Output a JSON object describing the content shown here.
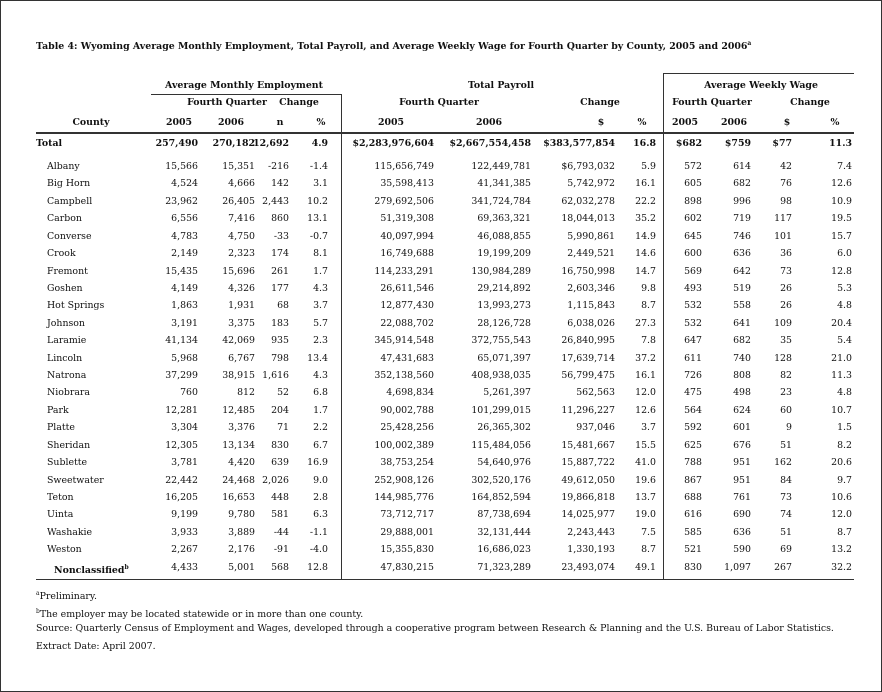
{
  "title": {
    "text": "Table 4:  Wyoming Average Monthly Employment, Total Payroll, and Average Weekly Wage for Fourth Quarter by County, 2005 and 2006",
    "note": "a"
  },
  "groups": [
    "Average Monthly Employment",
    "Total Payroll",
    "Average Weekly Wage"
  ],
  "subgroups": [
    "Fourth Quarter",
    "Change",
    "Fourth Quarter",
    "Change",
    "Fourth Quarter",
    "Change"
  ],
  "columns": [
    "County",
    "2005",
    "2006",
    "n",
    "%",
    "2005",
    "2006",
    "$",
    "%",
    "2005",
    "2006",
    "$",
    "%"
  ],
  "rows": [
    {
      "county": "Total",
      "values": [
        "257,490",
        "270,182",
        "12,692",
        "4.9",
        "$2,283,976,604",
        "$2,667,554,458",
        "$383,577,854",
        "16.8",
        "$682",
        "$759",
        "$77",
        "11.3"
      ]
    },
    {
      "county": "Albany",
      "values": [
        "15,566",
        "15,351",
        "-216",
        "-1.4",
        "115,656,749",
        "122,449,781",
        "$6,793,032",
        "5.9",
        "572",
        "614",
        "42",
        "7.4"
      ]
    },
    {
      "county": "Big Horn",
      "values": [
        "4,524",
        "4,666",
        "142",
        "3.1",
        "35,598,413",
        "41,341,385",
        "5,742,972",
        "16.1",
        "605",
        "682",
        "76",
        "12.6"
      ]
    },
    {
      "county": "Campbell",
      "values": [
        "23,962",
        "26,405",
        "2,443",
        "10.2",
        "279,692,506",
        "341,724,784",
        "62,032,278",
        "22.2",
        "898",
        "996",
        "98",
        "10.9"
      ]
    },
    {
      "county": "Carbon",
      "values": [
        "6,556",
        "7,416",
        "860",
        "13.1",
        "51,319,308",
        "69,363,321",
        "18,044,013",
        "35.2",
        "602",
        "719",
        "117",
        "19.5"
      ]
    },
    {
      "county": "Converse",
      "values": [
        "4,783",
        "4,750",
        "-33",
        "-0.7",
        "40,097,994",
        "46,088,855",
        "5,990,861",
        "14.9",
        "645",
        "746",
        "101",
        "15.7"
      ]
    },
    {
      "county": "Crook",
      "values": [
        "2,149",
        "2,323",
        "174",
        "8.1",
        "16,749,688",
        "19,199,209",
        "2,449,521",
        "14.6",
        "600",
        "636",
        "36",
        "6.0"
      ]
    },
    {
      "county": "Fremont",
      "values": [
        "15,435",
        "15,696",
        "261",
        "1.7",
        "114,233,291",
        "130,984,289",
        "16,750,998",
        "14.7",
        "569",
        "642",
        "73",
        "12.8"
      ]
    },
    {
      "county": "Goshen",
      "values": [
        "4,149",
        "4,326",
        "177",
        "4.3",
        "26,611,546",
        "29,214,892",
        "2,603,346",
        "9.8",
        "493",
        "519",
        "26",
        "5.3"
      ]
    },
    {
      "county": "Hot Springs",
      "values": [
        "1,863",
        "1,931",
        "68",
        "3.7",
        "12,877,430",
        "13,993,273",
        "1,115,843",
        "8.7",
        "532",
        "558",
        "26",
        "4.8"
      ]
    },
    {
      "county": "Johnson",
      "values": [
        "3,191",
        "3,375",
        "183",
        "5.7",
        "22,088,702",
        "28,126,728",
        "6,038,026",
        "27.3",
        "532",
        "641",
        "109",
        "20.4"
      ]
    },
    {
      "county": "Laramie",
      "values": [
        "41,134",
        "42,069",
        "935",
        "2.3",
        "345,914,548",
        "372,755,543",
        "26,840,995",
        "7.8",
        "647",
        "682",
        "35",
        "5.4"
      ]
    },
    {
      "county": "Lincoln",
      "values": [
        "5,968",
        "6,767",
        "798",
        "13.4",
        "47,431,683",
        "65,071,397",
        "17,639,714",
        "37.2",
        "611",
        "740",
        "128",
        "21.0"
      ]
    },
    {
      "county": "Natrona",
      "values": [
        "37,299",
        "38,915",
        "1,616",
        "4.3",
        "352,138,560",
        "408,938,035",
        "56,799,475",
        "16.1",
        "726",
        "808",
        "82",
        "11.3"
      ]
    },
    {
      "county": "Niobrara",
      "values": [
        "760",
        "812",
        "52",
        "6.8",
        "4,698,834",
        "5,261,397",
        "562,563",
        "12.0",
        "475",
        "498",
        "23",
        "4.8"
      ]
    },
    {
      "county": "Park",
      "values": [
        "12,281",
        "12,485",
        "204",
        "1.7",
        "90,002,788",
        "101,299,015",
        "11,296,227",
        "12.6",
        "564",
        "624",
        "60",
        "10.7"
      ]
    },
    {
      "county": "Platte",
      "values": [
        "3,304",
        "3,376",
        "71",
        "2.2",
        "25,428,256",
        "26,365,302",
        "937,046",
        "3.7",
        "592",
        "601",
        "9",
        "1.5"
      ]
    },
    {
      "county": "Sheridan",
      "values": [
        "12,305",
        "13,134",
        "830",
        "6.7",
        "100,002,389",
        "115,484,056",
        "15,481,667",
        "15.5",
        "625",
        "676",
        "51",
        "8.2"
      ]
    },
    {
      "county": "Sublette",
      "values": [
        "3,781",
        "4,420",
        "639",
        "16.9",
        "38,753,254",
        "54,640,976",
        "15,887,722",
        "41.0",
        "788",
        "951",
        "162",
        "20.6"
      ]
    },
    {
      "county": "Sweetwater",
      "values": [
        "22,442",
        "24,468",
        "2,026",
        "9.0",
        "252,908,126",
        "302,520,176",
        "49,612,050",
        "19.6",
        "867",
        "951",
        "84",
        "9.7"
      ]
    },
    {
      "county": "Teton",
      "values": [
        "16,205",
        "16,653",
        "448",
        "2.8",
        "144,985,776",
        "164,852,594",
        "19,866,818",
        "13.7",
        "688",
        "761",
        "73",
        "10.6"
      ]
    },
    {
      "county": "Uinta",
      "values": [
        "9,199",
        "9,780",
        "581",
        "6.3",
        "73,712,717",
        "87,738,694",
        "14,025,977",
        "19.0",
        "616",
        "690",
        "74",
        "12.0"
      ]
    },
    {
      "county": "Washakie",
      "values": [
        "3,933",
        "3,889",
        "-44",
        "-1.1",
        "29,888,001",
        "32,131,444",
        "2,243,443",
        "7.5",
        "585",
        "636",
        "51",
        "8.7"
      ]
    },
    {
      "county": "Weston",
      "values": [
        "2,267",
        "2,176",
        "-91",
        "-4.0",
        "15,355,830",
        "16,686,023",
        "1,330,193",
        "8.7",
        "521",
        "590",
        "69",
        "13.2"
      ]
    },
    {
      "county": "Nonclassified",
      "note": "b",
      "values": [
        "4,433",
        "5,001",
        "568",
        "12.8",
        "47,830,215",
        "71,323,289",
        "23,493,074",
        "49.1",
        "830",
        "1,097",
        "267",
        "32.2"
      ]
    }
  ],
  "footnotes": [
    {
      "mark": "a",
      "text": "Preliminary."
    },
    {
      "mark": "b",
      "text": "The employer may be located statewide or in more than one county."
    }
  ],
  "source": "Source: Quarterly Census of Employment and Wages, developed through a cooperative program between Research & Planning and the U.S. Bureau of Labor Statistics.",
  "extract": "Extract Date: April 2007."
}
